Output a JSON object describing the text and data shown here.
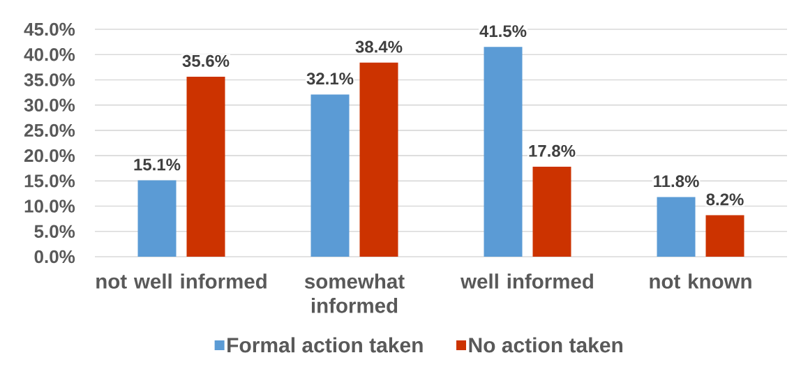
{
  "chart_data": {
    "type": "bar",
    "categories": [
      "not well informed",
      "somewhat informed",
      "well informed",
      "not known"
    ],
    "series": [
      {
        "name": "Formal action taken",
        "color": "#5b9bd5",
        "values": [
          15.1,
          32.1,
          41.5,
          11.8
        ],
        "value_labels": [
          "15.1%",
          "32.1%",
          "41.5%",
          "11.8%"
        ]
      },
      {
        "name": "No action taken",
        "color": "#cc3300",
        "values": [
          35.6,
          38.4,
          17.8,
          8.2
        ],
        "value_labels": [
          "35.6%",
          "38.4%",
          "17.8%",
          "8.2%"
        ]
      }
    ],
    "ylim": [
      0,
      45
    ],
    "yticks": [
      {
        "value": 0,
        "label": "0.0%"
      },
      {
        "value": 5,
        "label": "5.0%"
      },
      {
        "value": 10,
        "label": "10.0%"
      },
      {
        "value": 15,
        "label": "15.0%"
      },
      {
        "value": 20,
        "label": "20.0%"
      },
      {
        "value": 25,
        "label": "25.0%"
      },
      {
        "value": 30,
        "label": "30.0%"
      },
      {
        "value": 35,
        "label": "35.0%"
      },
      {
        "value": 40,
        "label": "40.0%"
      },
      {
        "value": 45,
        "label": "45.0%"
      }
    ],
    "grid": "y",
    "legend": "bottom"
  }
}
